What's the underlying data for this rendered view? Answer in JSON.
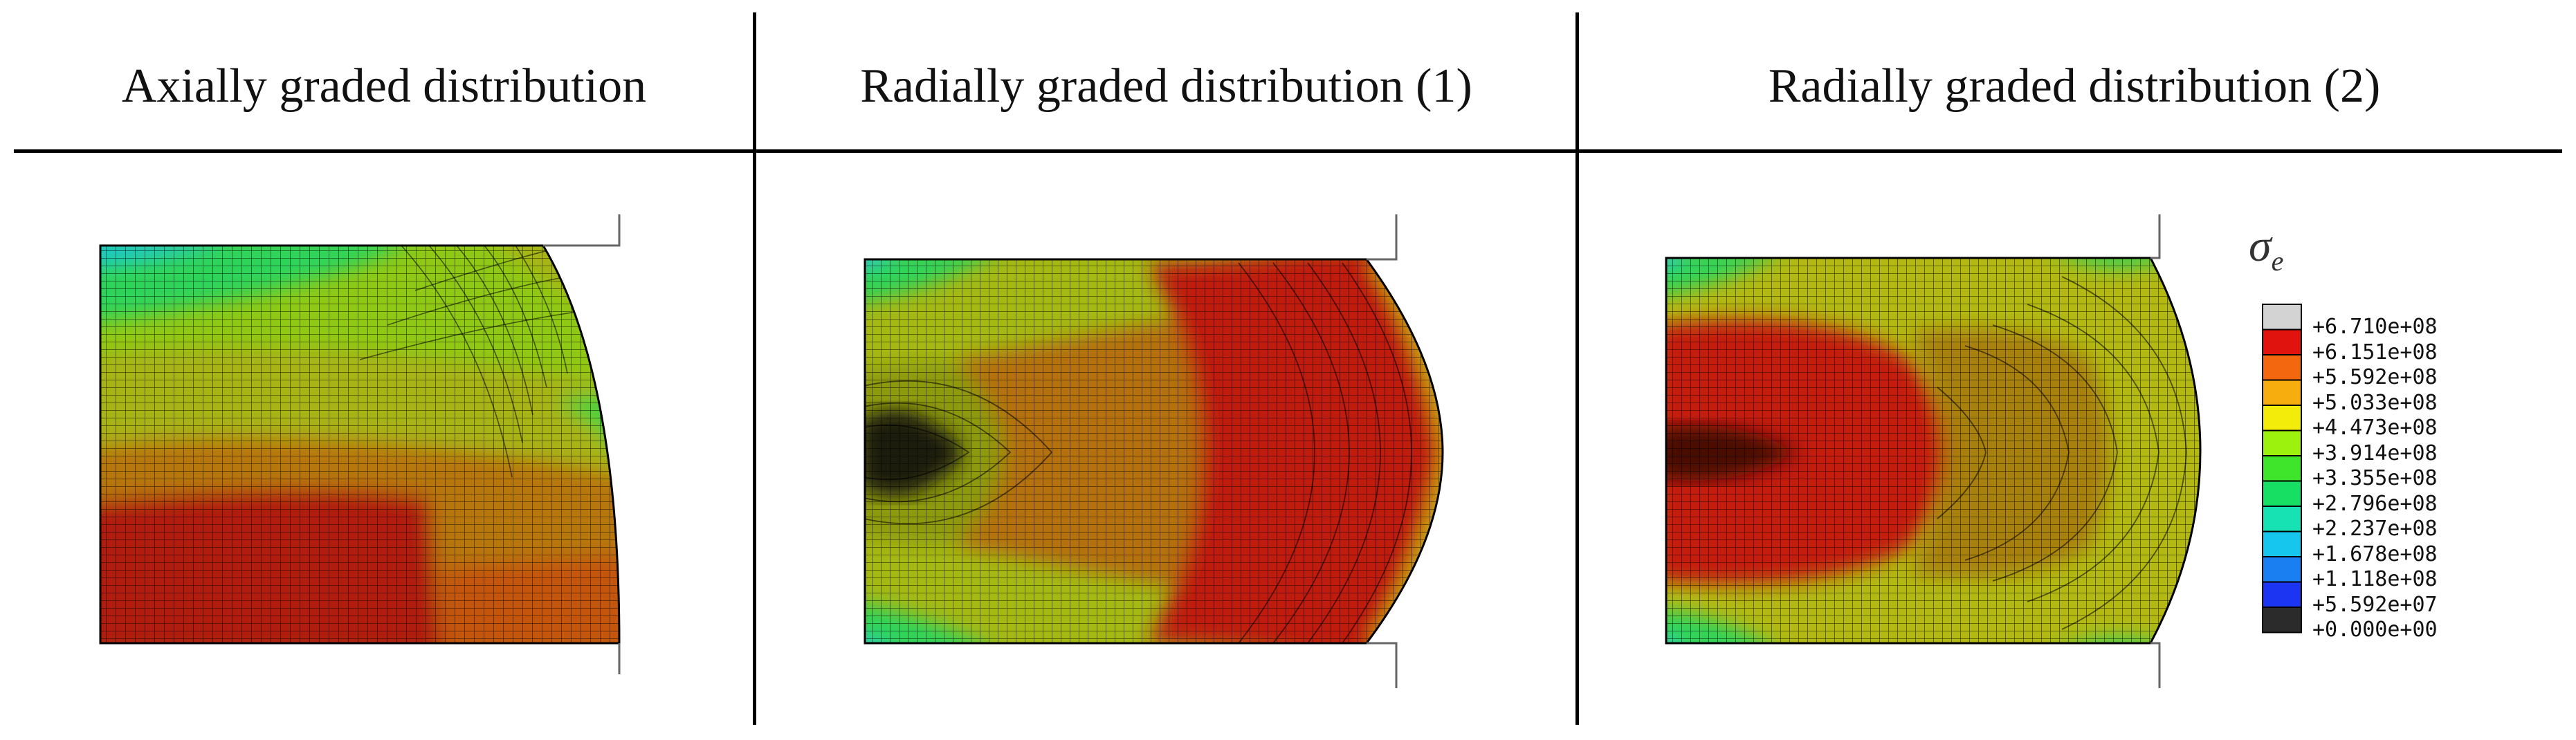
{
  "panels": [
    {
      "title": "Axially graded distribution"
    },
    {
      "title": "Radially graded distribution (1)"
    },
    {
      "title": "Radially graded distribution (2)"
    }
  ],
  "legend": {
    "symbol": "σ",
    "subscript": "e",
    "levels": [
      {
        "label": "+6.710e+08",
        "color": "#d3d3d3"
      },
      {
        "label": "+6.151e+08",
        "color": "#e0130f"
      },
      {
        "label": "+5.592e+08",
        "color": "#f3680e"
      },
      {
        "label": "+5.033e+08",
        "color": "#f6ad0d"
      },
      {
        "label": "+4.473e+08",
        "color": "#f3ec0a"
      },
      {
        "label": "+3.914e+08",
        "color": "#9cf20d"
      },
      {
        "label": "+3.355e+08",
        "color": "#3ee52a"
      },
      {
        "label": "+2.796e+08",
        "color": "#17df63"
      },
      {
        "label": "+2.237e+08",
        "color": "#16e2b3"
      },
      {
        "label": "+1.678e+08",
        "color": "#16c6ec"
      },
      {
        "label": "+1.118e+08",
        "color": "#1a7ff0"
      },
      {
        "label": "+5.592e+07",
        "color": "#1c35f2"
      },
      {
        "label": "+0.000e+00",
        "color": "#2b2b2b"
      }
    ]
  }
}
